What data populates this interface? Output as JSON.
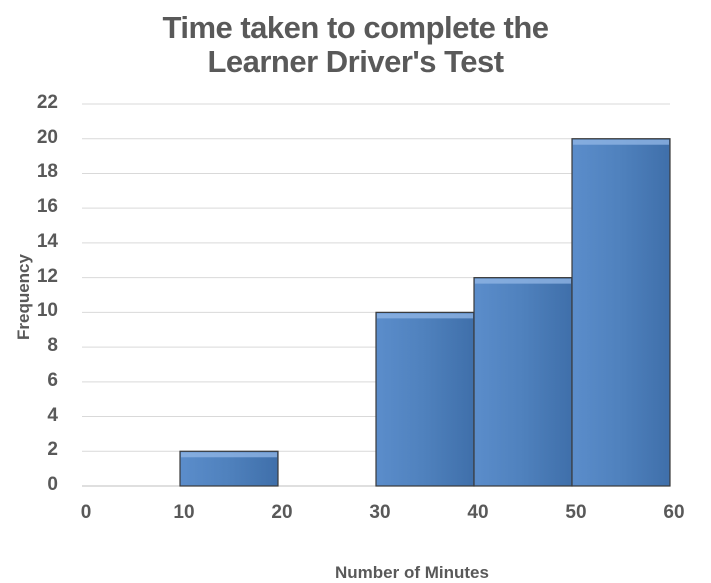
{
  "chart_data": {
    "type": "bar",
    "title_lines": [
      "Time taken to complete the",
      "Learner Driver's Test"
    ],
    "xlabel": "Number of Minutes",
    "ylabel": "Frequency",
    "bins": [
      {
        "from": 10,
        "to": 20,
        "value": 2
      },
      {
        "from": 20,
        "to": 30,
        "value": 0
      },
      {
        "from": 30,
        "to": 40,
        "value": 10
      },
      {
        "from": 40,
        "to": 50,
        "value": 12
      },
      {
        "from": 50,
        "to": 60,
        "value": 20
      }
    ],
    "xlim": [
      0,
      60
    ],
    "ylim": [
      0,
      22
    ],
    "x_ticks": [
      "0",
      "10",
      "20",
      "30",
      "40",
      "50",
      "60"
    ],
    "y_ticks": [
      "0",
      "2",
      "4",
      "6",
      "8",
      "10",
      "12",
      "14",
      "16",
      "18",
      "20",
      "22"
    ],
    "grid": true,
    "bar_color": "#4F81BD",
    "gridline_color": "#D9D9D9",
    "text_color": "#595959"
  }
}
